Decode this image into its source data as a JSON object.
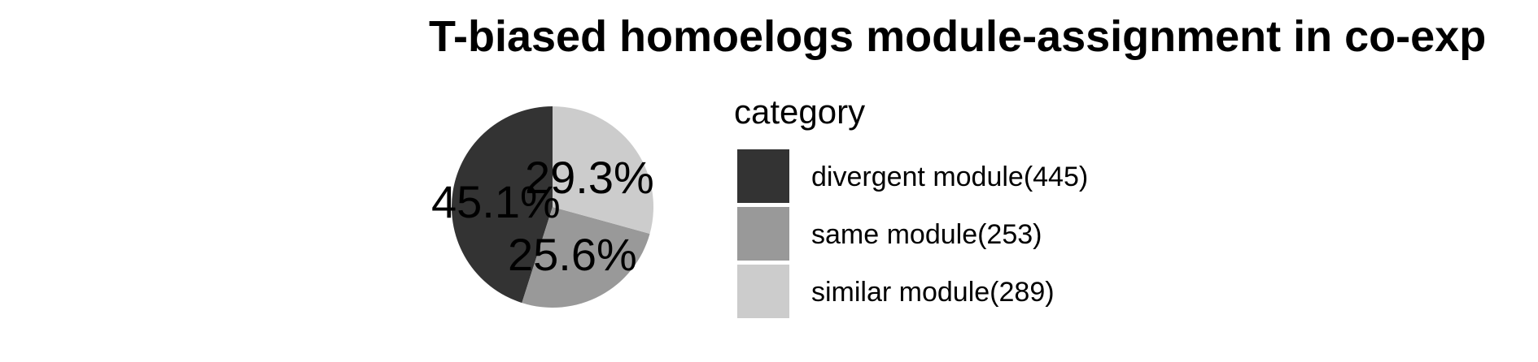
{
  "chart_data": {
    "type": "pie",
    "title": "T-biased homoelogs module-assignment in co-exp",
    "legend_title": "category",
    "legend_position": "right",
    "slices": [
      {
        "label": "divergent module(445)",
        "value": 445,
        "percent_label": "45.1%",
        "color": "#333333"
      },
      {
        "label": "same module(253)",
        "value": 253,
        "percent_label": "25.6%",
        "color": "#999999"
      },
      {
        "label": "similar module(289)",
        "value": 289,
        "percent_label": "29.3%",
        "color": "#cccccc"
      }
    ]
  }
}
